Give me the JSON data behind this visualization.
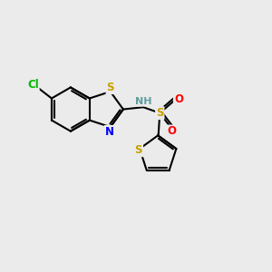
{
  "background_color": "#ebebeb",
  "colors": {
    "S": "#c8a000",
    "N": "#0000ff",
    "O": "#ff0000",
    "Cl": "#00bb00",
    "H": "#5f9ea0",
    "C": "#000000"
  }
}
